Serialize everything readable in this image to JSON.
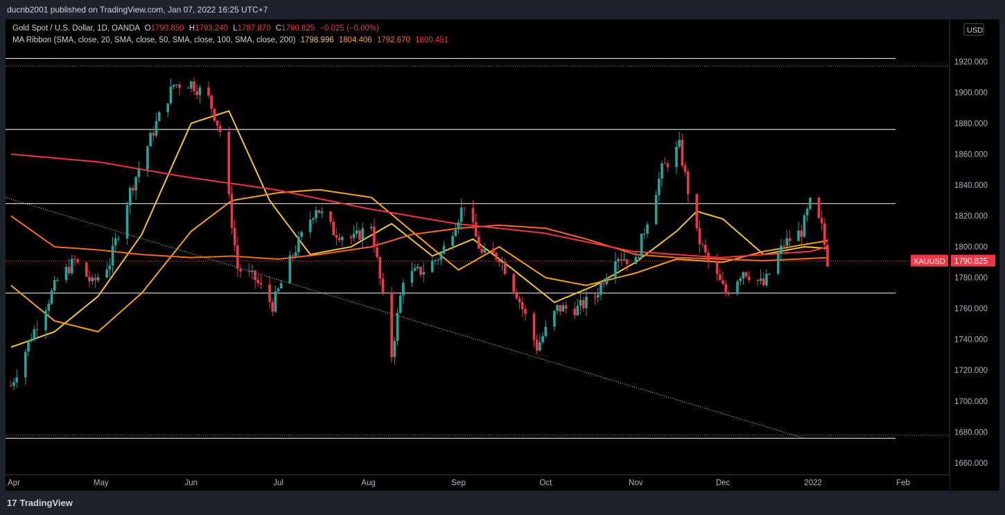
{
  "header": {
    "published": "ducnb2001 published on TradingView.com, Jan 07, 2022 16:25 UTC+7"
  },
  "legend": {
    "symbol": "Gold Spot / U.S. Dollar, 1D, OANDA",
    "o_label": "O",
    "o": "1790.850",
    "h_label": "H",
    "h": "1793.240",
    "l_label": "L",
    "l": "1787.870",
    "c_label": "C",
    "c": "1790.825",
    "change": "−0.025 (−0.00%)",
    "ma_label": "MA Ribbon (SMA, close, 20, SMA, close, 50, SMA, close, 100, SMA, close, 200)",
    "ma_values": [
      "1798.996",
      "1804.406",
      "1792.670",
      "1800.451"
    ]
  },
  "price_axis": {
    "currency": "USD",
    "ticks": [
      "1660.000",
      "1680.000",
      "1700.000",
      "1720.000",
      "1740.000",
      "1760.000",
      "1780.000",
      "1800.000",
      "1820.000",
      "1840.000",
      "1860.000",
      "1880.000",
      "1900.000",
      "1920.000"
    ]
  },
  "time_axis": {
    "ticks": [
      "Apr",
      "May",
      "Jun",
      "Jul",
      "Aug",
      "Sep",
      "Oct",
      "Nov",
      "Dec",
      "2022",
      "Feb"
    ]
  },
  "current_price": {
    "symbol": "XAUUSD",
    "price": "1790.825"
  },
  "footer": {
    "brand": "TradingView"
  },
  "colors": {
    "up": "#26a69a",
    "down": "#f23645",
    "ma20": "#f7c531",
    "ma50": "#f7a21b",
    "ma100": "#f76c1b",
    "ma200": "#f23645",
    "bg": "#000000"
  },
  "chart_data": {
    "type": "candlestick",
    "ylim": [
      1655,
      1950
    ],
    "hlines": [
      1922,
      1876,
      1828,
      1770,
      1676
    ],
    "dotted_hlines": [
      1917,
      1678,
      1790.825
    ],
    "trendline": [
      {
        "x": "2021-03-29",
        "y": 1832
      },
      {
        "x": "2021-12-29",
        "y": 1676
      }
    ],
    "ohlc_anchors": [
      [
        "2021-03-31",
        1710
      ],
      [
        "2021-04-07",
        1742
      ],
      [
        "2021-04-16",
        1778
      ],
      [
        "2021-04-22",
        1791
      ],
      [
        "2021-04-28",
        1776
      ],
      [
        "2021-05-04",
        1790
      ],
      [
        "2021-05-11",
        1836
      ],
      [
        "2021-05-20",
        1880
      ],
      [
        "2021-05-26",
        1905
      ],
      [
        "2021-06-01",
        1906
      ],
      [
        "2021-06-07",
        1896
      ],
      [
        "2021-06-11",
        1875
      ],
      [
        "2021-06-17",
        1786
      ],
      [
        "2021-06-23",
        1779
      ],
      [
        "2021-06-29",
        1762
      ],
      [
        "2021-07-06",
        1795
      ],
      [
        "2021-07-14",
        1826
      ],
      [
        "2021-07-20",
        1810
      ],
      [
        "2021-07-27",
        1805
      ],
      [
        "2021-08-02",
        1815
      ],
      [
        "2021-08-09",
        1730
      ],
      [
        "2021-08-13",
        1780
      ],
      [
        "2021-08-20",
        1785
      ],
      [
        "2021-08-26",
        1795
      ],
      [
        "2021-09-03",
        1828
      ],
      [
        "2021-09-09",
        1795
      ],
      [
        "2021-09-15",
        1794
      ],
      [
        "2021-09-21",
        1770
      ],
      [
        "2021-09-28",
        1735
      ],
      [
        "2021-10-05",
        1760
      ],
      [
        "2021-10-12",
        1760
      ],
      [
        "2021-10-18",
        1768
      ],
      [
        "2021-10-25",
        1795
      ],
      [
        "2021-11-01",
        1790
      ],
      [
        "2021-11-05",
        1818
      ],
      [
        "2021-11-10",
        1850
      ],
      [
        "2021-11-16",
        1865
      ],
      [
        "2021-11-22",
        1808
      ],
      [
        "2021-11-26",
        1790
      ],
      [
        "2021-12-02",
        1770
      ],
      [
        "2021-12-08",
        1785
      ],
      [
        "2021-12-15",
        1775
      ],
      [
        "2021-12-22",
        1802
      ],
      [
        "2021-12-28",
        1810
      ],
      [
        "2021-12-31",
        1828
      ],
      [
        "2022-01-04",
        1812
      ],
      [
        "2022-01-06",
        1791
      ]
    ],
    "moving_averages": [
      {
        "name": "SMA 20",
        "points": [
          [
            "2021-03-31",
            1735
          ],
          [
            "2021-04-15",
            1745
          ],
          [
            "2021-04-30",
            1768
          ],
          [
            "2021-05-15",
            1808
          ],
          [
            "2021-06-01",
            1880
          ],
          [
            "2021-06-14",
            1888
          ],
          [
            "2021-06-28",
            1830
          ],
          [
            "2021-07-12",
            1795
          ],
          [
            "2021-07-26",
            1800
          ],
          [
            "2021-08-09",
            1815
          ],
          [
            "2021-08-23",
            1794
          ],
          [
            "2021-09-06",
            1805
          ],
          [
            "2021-09-20",
            1785
          ],
          [
            "2021-10-04",
            1764
          ],
          [
            "2021-10-18",
            1775
          ],
          [
            "2021-11-01",
            1790
          ],
          [
            "2021-11-15",
            1810
          ],
          [
            "2021-11-22",
            1823
          ],
          [
            "2021-12-01",
            1818
          ],
          [
            "2021-12-15",
            1795
          ],
          [
            "2021-12-29",
            1800
          ],
          [
            "2022-01-06",
            1799
          ]
        ]
      },
      {
        "name": "SMA 50",
        "points": [
          [
            "2021-03-31",
            1775
          ],
          [
            "2021-04-15",
            1752
          ],
          [
            "2021-04-30",
            1745
          ],
          [
            "2021-05-15",
            1770
          ],
          [
            "2021-06-01",
            1810
          ],
          [
            "2021-06-15",
            1830
          ],
          [
            "2021-07-01",
            1835
          ],
          [
            "2021-07-15",
            1837
          ],
          [
            "2021-08-02",
            1832
          ],
          [
            "2021-08-16",
            1810
          ],
          [
            "2021-09-01",
            1785
          ],
          [
            "2021-09-15",
            1800
          ],
          [
            "2021-10-01",
            1780
          ],
          [
            "2021-10-15",
            1775
          ],
          [
            "2021-11-01",
            1783
          ],
          [
            "2021-11-15",
            1792
          ],
          [
            "2021-12-01",
            1790
          ],
          [
            "2021-12-15",
            1797
          ],
          [
            "2022-01-06",
            1804
          ]
        ]
      },
      {
        "name": "SMA 100",
        "points": [
          [
            "2021-03-31",
            1820
          ],
          [
            "2021-04-15",
            1800
          ],
          [
            "2021-04-30",
            1798
          ],
          [
            "2021-05-15",
            1795
          ],
          [
            "2021-06-01",
            1793
          ],
          [
            "2021-06-15",
            1794
          ],
          [
            "2021-07-01",
            1792
          ],
          [
            "2021-07-15",
            1795
          ],
          [
            "2021-08-02",
            1800
          ],
          [
            "2021-08-16",
            1808
          ],
          [
            "2021-09-01",
            1812
          ],
          [
            "2021-09-15",
            1814
          ],
          [
            "2021-10-01",
            1812
          ],
          [
            "2021-10-15",
            1805
          ],
          [
            "2021-11-01",
            1795
          ],
          [
            "2021-11-15",
            1793
          ],
          [
            "2021-12-01",
            1792
          ],
          [
            "2021-12-15",
            1791
          ],
          [
            "2022-01-06",
            1793
          ]
        ]
      },
      {
        "name": "SMA 200",
        "points": [
          [
            "2021-03-31",
            1860
          ],
          [
            "2021-04-30",
            1855
          ],
          [
            "2021-05-31",
            1845
          ],
          [
            "2021-06-30",
            1837
          ],
          [
            "2021-07-31",
            1825
          ],
          [
            "2021-08-31",
            1815
          ],
          [
            "2021-09-30",
            1809
          ],
          [
            "2021-10-31",
            1797
          ],
          [
            "2021-11-30",
            1793
          ],
          [
            "2021-12-31",
            1797
          ],
          [
            "2022-01-06",
            1800
          ]
        ]
      }
    ]
  }
}
